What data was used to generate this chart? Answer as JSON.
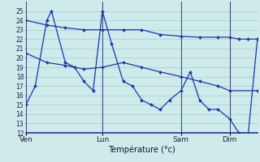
{
  "xlabel": "Température (°c)",
  "background_color": "#ceeaea",
  "grid_color": "#aacccc",
  "line_color": "#1a35b0",
  "vline_color": "#334488",
  "ylim": [
    12,
    26
  ],
  "yticks": [
    12,
    13,
    14,
    15,
    16,
    17,
    18,
    19,
    20,
    21,
    22,
    23,
    24,
    25
  ],
  "day_labels": [
    "Ven",
    "Lun",
    "Sam",
    "Dim"
  ],
  "day_positions": [
    0.0,
    0.33,
    0.67,
    0.88
  ],
  "xlim": [
    0.0,
    1.0
  ],
  "series": [
    {
      "x": [
        0.0,
        0.04,
        0.09,
        0.11,
        0.17,
        0.21,
        0.25,
        0.29,
        0.33,
        0.37,
        0.42,
        0.46,
        0.5,
        0.54,
        0.58,
        0.62,
        0.67,
        0.71,
        0.75,
        0.79,
        0.83,
        0.88,
        0.92,
        0.96,
        1.0
      ],
      "y": [
        15.0,
        17.0,
        24.0,
        25.0,
        19.5,
        19.0,
        17.5,
        16.5,
        25.0,
        21.5,
        17.5,
        17.0,
        15.5,
        15.0,
        14.5,
        15.5,
        16.5,
        18.5,
        15.5,
        14.5,
        14.5,
        13.5,
        12.0,
        11.8,
        22.0
      ]
    },
    {
      "x": [
        0.0,
        0.09,
        0.17,
        0.25,
        0.33,
        0.42,
        0.5,
        0.58,
        0.67,
        0.75,
        0.83,
        0.88,
        1.0
      ],
      "y": [
        20.5,
        19.5,
        19.2,
        18.8,
        19.0,
        19.5,
        19.0,
        18.5,
        18.0,
        17.5,
        17.0,
        16.5,
        16.5
      ]
    },
    {
      "x": [
        0.0,
        0.09,
        0.17,
        0.25,
        0.33,
        0.42,
        0.5,
        0.58,
        0.67,
        0.75,
        0.83,
        0.88,
        0.92,
        0.96,
        1.0
      ],
      "y": [
        24.0,
        23.5,
        23.2,
        23.0,
        23.0,
        23.0,
        23.0,
        22.5,
        22.3,
        22.2,
        22.2,
        22.2,
        22.0,
        22.0,
        22.0
      ]
    }
  ]
}
